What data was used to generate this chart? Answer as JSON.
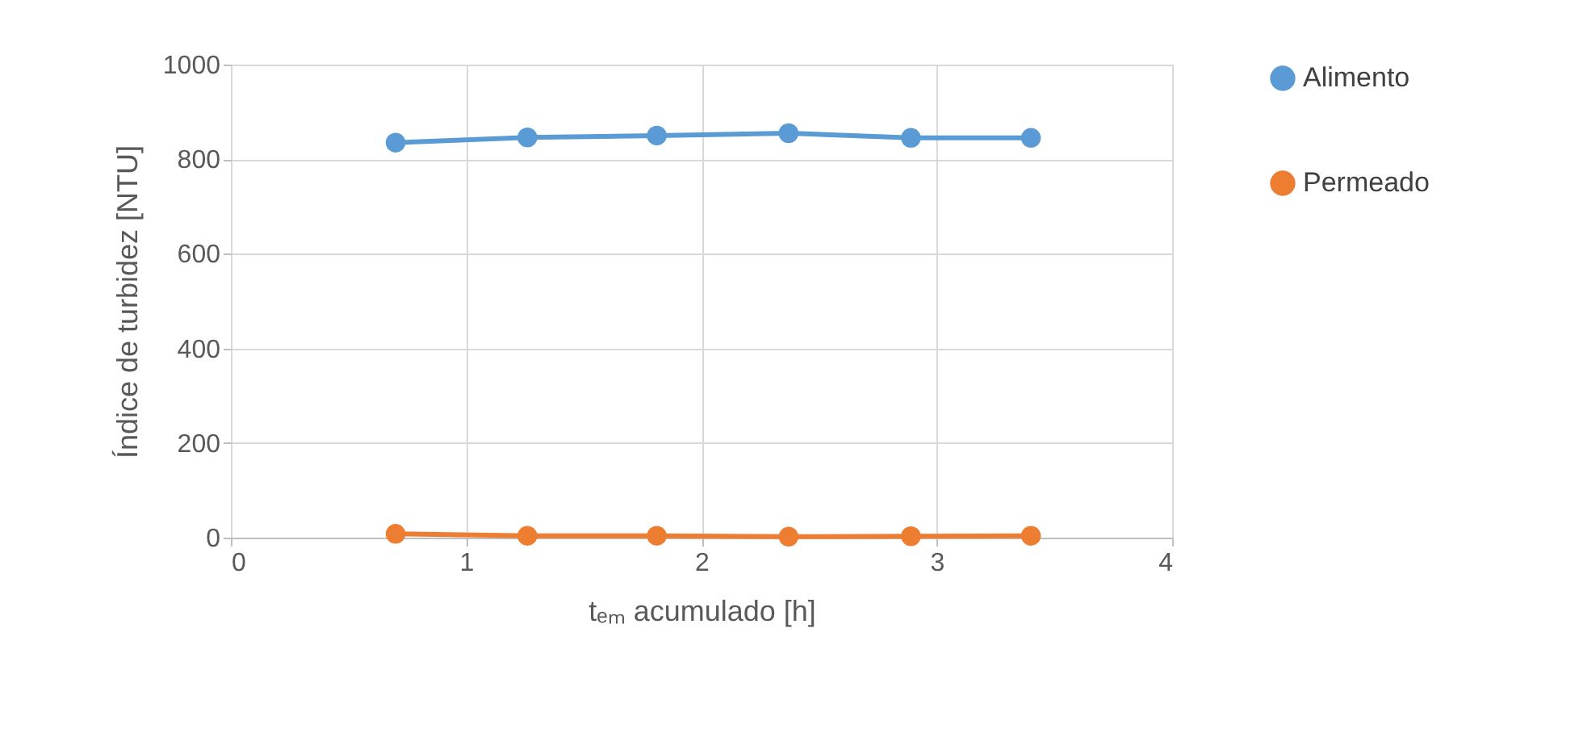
{
  "chart_data": {
    "type": "line",
    "xlabel": "tₑₘ acumulado [h]",
    "ylabel": "Índice de turbidez [NTU]",
    "x": [
      0.7,
      1.26,
      1.81,
      2.37,
      2.89,
      3.4
    ],
    "series": [
      {
        "name": "Alimento",
        "color": "#5b9bd5",
        "values": [
          835,
          846,
          850,
          855,
          845,
          845
        ]
      },
      {
        "name": "Permeado",
        "color": "#ed7d31",
        "values": [
          8,
          4,
          4,
          2,
          3,
          4
        ]
      }
    ],
    "xlim": [
      0,
      4
    ],
    "xticks": [
      0,
      1,
      2,
      3,
      4
    ],
    "ylim": [
      0,
      1000
    ],
    "yticks": [
      0,
      200,
      400,
      600,
      800,
      1000
    ],
    "grid": true,
    "legend": "right",
    "marker": "circle",
    "line_style": "solid"
  }
}
